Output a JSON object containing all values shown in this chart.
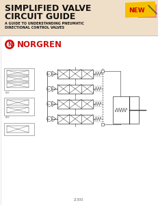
{
  "title_line1": "SIMPLIFIED VALVE",
  "title_line2": "CIRCUIT GUIDE",
  "subtitle_line1": "A GUIDE TO UNDERSTANDING PNEUMATIC",
  "subtitle_line2": "DIRECTIONAL CONTROL VALVES",
  "brand": "NORGREN",
  "page_code": "Z-300",
  "bg_color": "#FFFFFF",
  "header_bg": "#F0DFC8",
  "title_color": "#111111",
  "brand_red": "#CC1111",
  "line_color": "#333333"
}
